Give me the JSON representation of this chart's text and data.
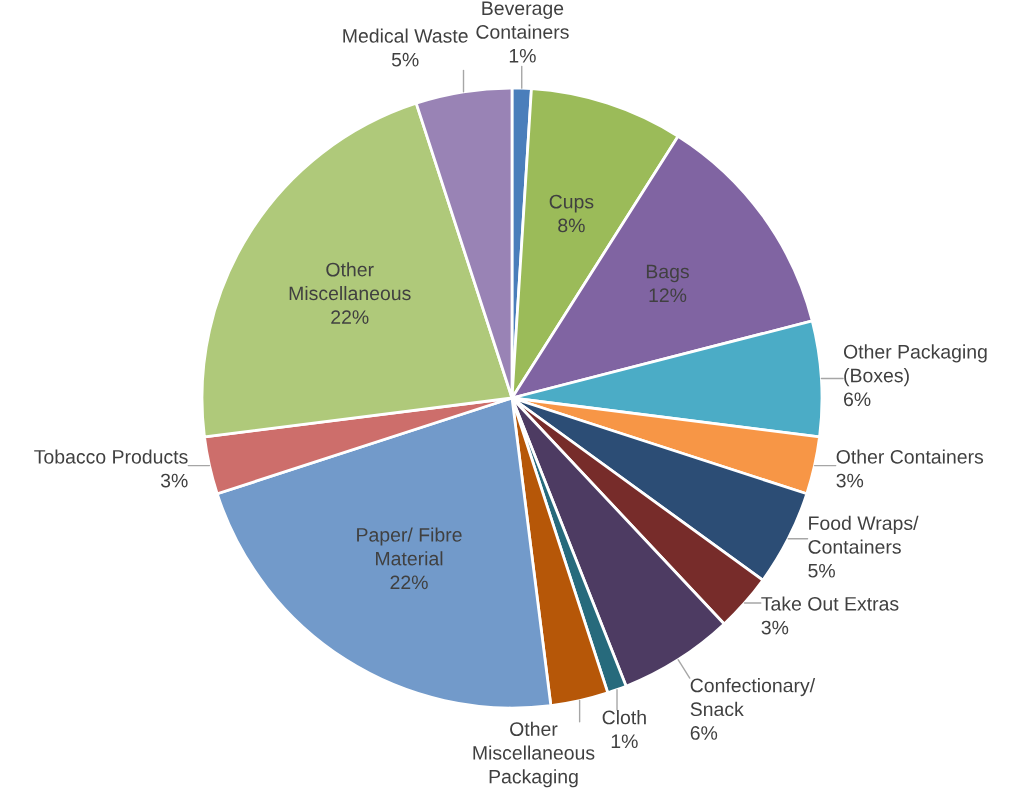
{
  "chart_data": {
    "type": "pie",
    "categories": [
      "Beverage Containers",
      "Cups",
      "Bags",
      "Other Packaging (Boxes)",
      "Other Containers",
      "Food Wraps/ Containers",
      "Take Out Extras",
      "Confectionary/ Snack",
      "Cloth",
      "Other Miscellaneous Packaging",
      "Paper/ Fibre Material",
      "Tobacco Products",
      "Other Miscellaneous",
      "Medical Waste"
    ],
    "values": [
      1,
      8,
      12,
      6,
      3,
      5,
      3,
      6,
      1,
      3,
      22,
      3,
      22,
      5
    ],
    "value_labels": [
      "1%",
      "8%",
      "12%",
      "6%",
      "3%",
      "5%",
      "3%",
      "6%",
      "1%",
      null,
      "22%",
      "3%",
      "22%",
      "5%"
    ],
    "colors": [
      "#4a7ebb",
      "#9bbb59",
      "#8064a2",
      "#4bacc6",
      "#f79646",
      "#2c4d75",
      "#772c2a",
      "#4d3b62",
      "#276a7c",
      "#b65708",
      "#729aca",
      "#cd6e6b",
      "#afc97a",
      "#9983b5"
    ]
  }
}
